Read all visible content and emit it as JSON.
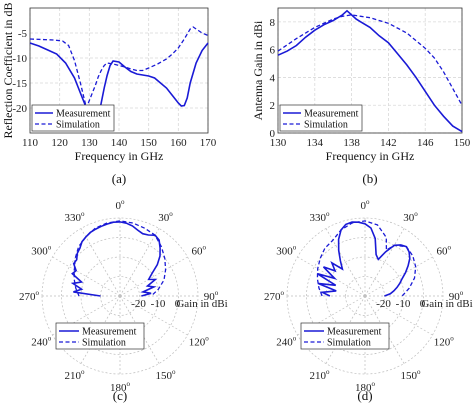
{
  "chart_data": [
    {
      "panel": "a",
      "type": "line",
      "caption": "(a)",
      "xlabel": "Frequency in GHz",
      "ylabel": "Reflection Coefficient in dB",
      "xlim": [
        110,
        170
      ],
      "ylim": [
        -25,
        0
      ],
      "xticks": [
        110,
        120,
        130,
        140,
        150,
        160,
        170
      ],
      "legend": "bottom-left",
      "series": [
        {
          "name": "Measurement",
          "style": "solid",
          "x": [
            110,
            113,
            116,
            119,
            122,
            125,
            127,
            129,
            131,
            132,
            133,
            134,
            135,
            136,
            137,
            138,
            140,
            142,
            144,
            146,
            148,
            150,
            152,
            154,
            156,
            158,
            160,
            161,
            162,
            163,
            164,
            166,
            168,
            170
          ],
          "y": [
            -7,
            -7.6,
            -8.4,
            -9.2,
            -11,
            -14,
            -17,
            -20,
            -22.5,
            -23.3,
            -22,
            -19,
            -16,
            -13.5,
            -11.5,
            -10.6,
            -10.8,
            -11.8,
            -12.7,
            -13.2,
            -13.4,
            -13.6,
            -14,
            -15,
            -16,
            -17.5,
            -19,
            -19.6,
            -19.5,
            -18,
            -15,
            -11,
            -8.5,
            -7
          ]
        },
        {
          "name": "Simulation",
          "style": "dashed",
          "x": [
            110,
            114,
            118,
            121,
            123,
            125,
            127,
            129,
            131,
            132,
            133,
            134,
            135,
            136,
            138,
            140,
            142,
            144,
            146,
            148,
            150,
            153,
            156,
            158,
            160,
            162,
            164,
            165,
            166,
            168,
            170
          ],
          "y": [
            -6.2,
            -6.3,
            -6.4,
            -6.6,
            -7.5,
            -10.5,
            -15,
            -20,
            -17,
            -15.5,
            -13.8,
            -12.5,
            -11.5,
            -11,
            -11.2,
            -11.5,
            -11.8,
            -12.2,
            -12.5,
            -12.5,
            -12,
            -11.2,
            -10.2,
            -9.2,
            -8,
            -6.2,
            -4.2,
            -3.8,
            -4.2,
            -5,
            -5.5
          ]
        }
      ]
    },
    {
      "panel": "b",
      "type": "line",
      "caption": "(b)",
      "xlabel": "Frequency in GHz",
      "ylabel": "Antenna Gain in dBi",
      "xlim": [
        130,
        150
      ],
      "ylim": [
        0,
        9
      ],
      "xticks": [
        130,
        134,
        138,
        142,
        146,
        150
      ],
      "yticks": [
        0,
        2,
        4,
        6,
        8
      ],
      "legend": "bottom-left",
      "series": [
        {
          "name": "Measurement",
          "style": "solid",
          "x": [
            130,
            131,
            132,
            133,
            134,
            135,
            136,
            137,
            137.5,
            138,
            138.5,
            139,
            140,
            141,
            142,
            143,
            144,
            145,
            146,
            147,
            148,
            149,
            150
          ],
          "y": [
            5.6,
            5.9,
            6.3,
            6.9,
            7.4,
            7.8,
            8.1,
            8.5,
            8.8,
            8.5,
            8.2,
            8.0,
            7.6,
            7.0,
            6.5,
            5.7,
            4.9,
            4.0,
            3.0,
            2.0,
            1.2,
            0.5,
            0.1
          ]
        },
        {
          "name": "Simulation",
          "style": "dashed",
          "x": [
            130,
            132,
            134,
            136,
            137,
            138,
            139,
            140,
            142,
            144,
            146,
            147,
            148,
            149,
            150
          ],
          "y": [
            5.9,
            6.8,
            7.6,
            8.2,
            8.4,
            8.5,
            8.4,
            8.3,
            7.9,
            7.2,
            6.1,
            5.4,
            4.4,
            3.2,
            2.0
          ]
        }
      ]
    },
    {
      "panel": "c",
      "type": "polar",
      "caption": "(c)",
      "rlabel": "Gain in dBi",
      "rlim": [
        -30,
        10
      ],
      "rticks": [
        -20,
        -10,
        0
      ],
      "angle_ticks": [
        "0",
        "30",
        "60",
        "90",
        "120",
        "150",
        "180",
        "210",
        "240",
        "270",
        "300",
        "330"
      ],
      "angle_unit_mark": "o",
      "legend": "bottom-left",
      "series": [
        {
          "name": "Measurement",
          "style": "solid",
          "theta": [
            -90,
            -85,
            -80,
            -75,
            -70,
            -65,
            -60,
            -55,
            -50,
            -45,
            -40,
            -35,
            -30,
            -25,
            -20,
            -15,
            -10,
            -5,
            0,
            5,
            10,
            15,
            20,
            25,
            30,
            35,
            40,
            45,
            50,
            55,
            60,
            65,
            70,
            75,
            80,
            85,
            90
          ],
          "r": [
            -20,
            -6,
            -10,
            -5,
            -9,
            -3,
            -4,
            -1,
            -1,
            1,
            2,
            4,
            5,
            6,
            6.5,
            7,
            7.5,
            8,
            8,
            7.5,
            6.5,
            5,
            4,
            4.5,
            6,
            5,
            2,
            -1,
            -5,
            -10,
            -13,
            -10,
            -15,
            -12,
            -18,
            -14,
            -19
          ]
        },
        {
          "name": "Simulation",
          "style": "dashed",
          "theta": [
            -90,
            -80,
            -70,
            -60,
            -50,
            -40,
            -30,
            -20,
            -10,
            0,
            10,
            20,
            30,
            40,
            50,
            60,
            70,
            80,
            90
          ],
          "r": [
            -9,
            -7,
            -5,
            -3,
            0,
            3,
            5,
            7,
            8,
            8.5,
            8,
            7,
            6,
            3,
            0,
            -3,
            -6,
            -10,
            -14
          ]
        }
      ]
    },
    {
      "panel": "d",
      "type": "polar",
      "caption": "(d)",
      "rlabel": "Gain in dBi",
      "rlim": [
        -30,
        10
      ],
      "rticks": [
        -20,
        -10,
        0
      ],
      "angle_ticks": [
        "0",
        "30",
        "60",
        "90",
        "120",
        "150",
        "180",
        "210",
        "240",
        "270",
        "300",
        "330"
      ],
      "angle_unit_mark": "o",
      "legend": "bottom-left",
      "series": [
        {
          "name": "Measurement",
          "style": "solid",
          "theta": [
            -90,
            -85,
            -80,
            -75,
            -70,
            -65,
            -60,
            -55,
            -50,
            -45,
            -40,
            -35,
            -30,
            -25,
            -20,
            -15,
            -10,
            -5,
            0,
            5,
            10,
            15,
            20,
            25,
            30,
            35,
            40,
            45,
            50,
            55,
            60,
            65,
            70,
            75,
            80,
            85,
            90
          ],
          "r": [
            -12,
            -8,
            -15,
            -5,
            -14,
            -3,
            -12,
            -4,
            -10,
            -6,
            -12,
            -8,
            -3,
            2,
            6,
            8,
            8.5,
            8,
            7,
            5,
            0,
            -8,
            -10,
            -5,
            0,
            2,
            3,
            2,
            0,
            -3,
            -6,
            -9,
            -11,
            -13,
            -15,
            -17,
            -20
          ]
        },
        {
          "name": "Simulation",
          "style": "dashed",
          "theta": [
            -90,
            -80,
            -70,
            -60,
            -50,
            -40,
            -30,
            -20,
            -10,
            0,
            10,
            20,
            25,
            30,
            40,
            50,
            60,
            70,
            80,
            90
          ],
          "r": [
            -8,
            -6,
            -4,
            -2,
            0,
            2,
            3,
            6,
            8,
            8.5,
            7,
            2,
            -4,
            0,
            3,
            2,
            0,
            -3,
            -7,
            -11
          ]
        }
      ]
    }
  ]
}
